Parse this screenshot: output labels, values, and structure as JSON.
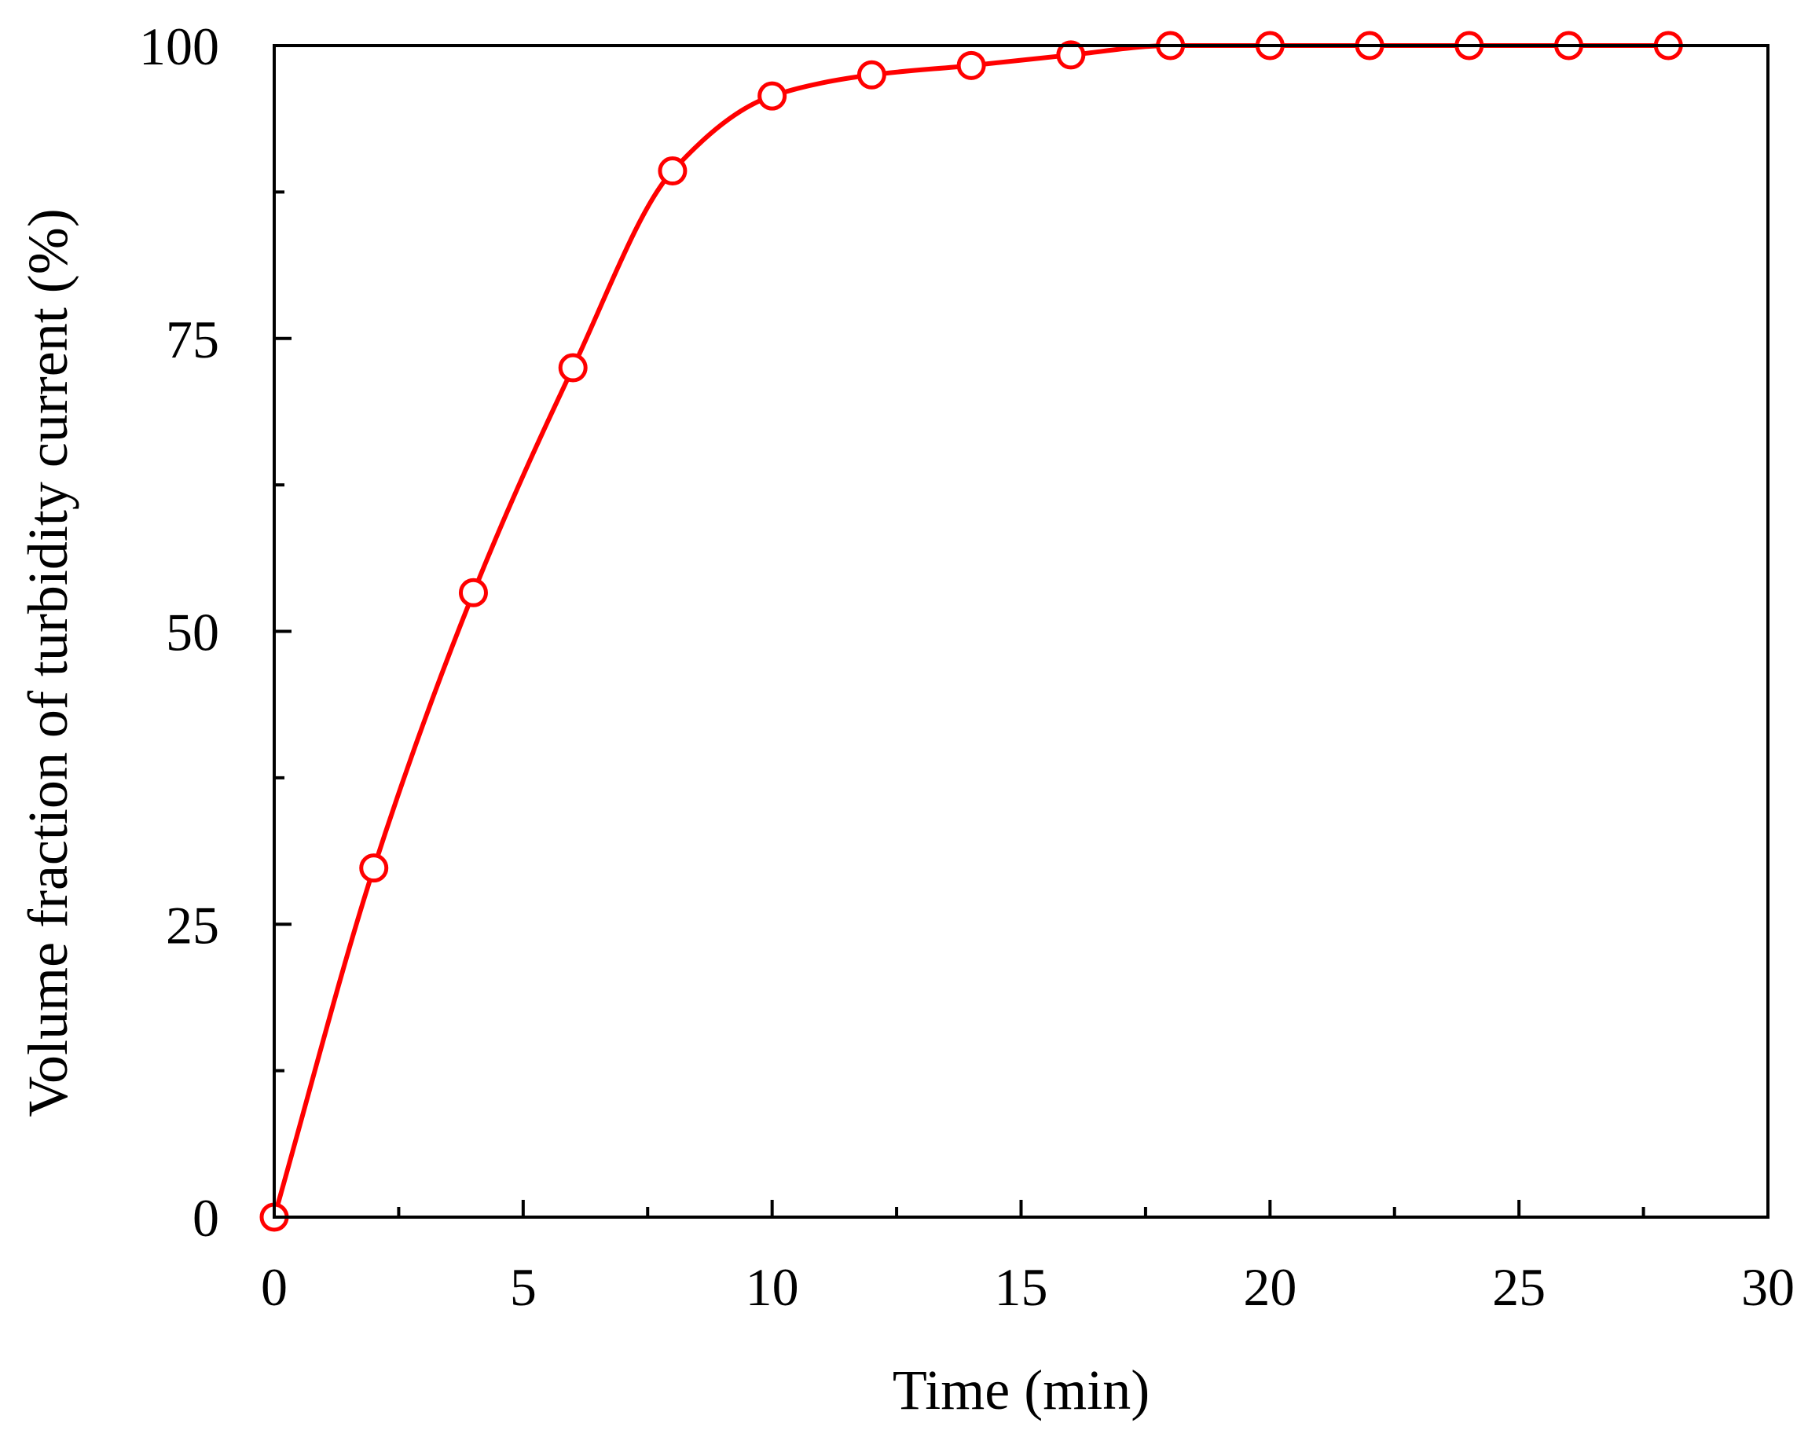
{
  "chart_data": {
    "type": "line",
    "title": "",
    "xlabel": "Time (min)",
    "ylabel": "Volume fraction of  turbidity current (%)",
    "xlim": [
      0,
      30
    ],
    "ylim": [
      0,
      100
    ],
    "x_ticks": [
      "0",
      "5",
      "10",
      "15",
      "20",
      "25",
      "30"
    ],
    "y_ticks": [
      "0",
      "25",
      "50",
      "75",
      "100"
    ],
    "x_minor_step": 2.5,
    "y_minor_step": 12.5,
    "grid": false,
    "legend": "none",
    "marker": "open-circle",
    "line_style": "smooth",
    "color": "#ff0000",
    "series": [
      {
        "x": [
          0,
          2,
          4,
          6,
          8,
          10,
          12,
          14,
          16,
          18,
          20,
          22,
          24,
          26,
          28
        ],
        "y": [
          0,
          29.8,
          53.3,
          72.5,
          89.3,
          95.7,
          97.5,
          98.3,
          99.2,
          100,
          100,
          100,
          100,
          100,
          100
        ]
      }
    ]
  }
}
